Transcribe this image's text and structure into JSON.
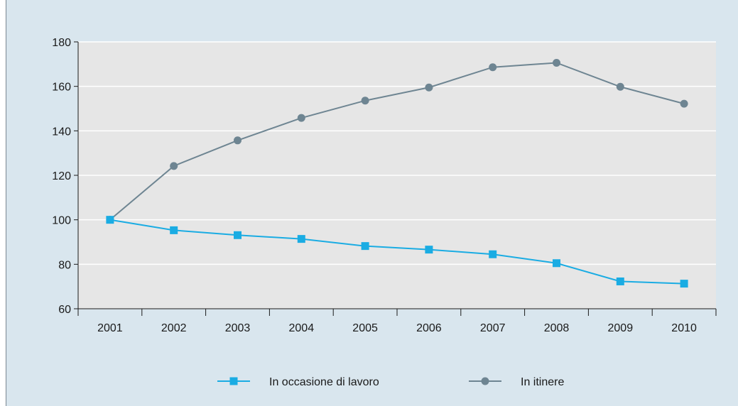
{
  "chart_data": {
    "type": "line",
    "title": "",
    "xlabel": "",
    "ylabel": "",
    "categories": [
      "2001",
      "2002",
      "2003",
      "2004",
      "2005",
      "2006",
      "2007",
      "2008",
      "2009",
      "2010"
    ],
    "ylim": [
      60,
      180
    ],
    "yticks": [
      60,
      80,
      100,
      120,
      140,
      160,
      180
    ],
    "grid": true,
    "legend_position": "bottom",
    "series": [
      {
        "name": "In occasione di lavoro",
        "color": "#1aace3",
        "marker": "square",
        "values": [
          100,
          95.3,
          93.1,
          91.4,
          88.2,
          86.6,
          84.5,
          80.5,
          72.3,
          71.3
        ]
      },
      {
        "name": "In itinere",
        "color": "#6e8592",
        "marker": "circle",
        "values": [
          100,
          124.2,
          135.7,
          145.8,
          153.6,
          159.5,
          168.6,
          170.6,
          159.8,
          152.2
        ]
      }
    ]
  },
  "colors": {
    "frame_background": "#d9e6ee",
    "plot_background": "#e6e6e6",
    "gridline": "#ffffff",
    "axis": "#1a1a1a"
  }
}
